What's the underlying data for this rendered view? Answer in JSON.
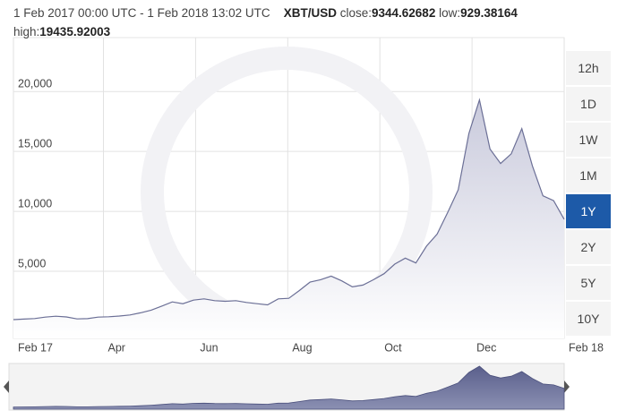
{
  "header": {
    "range": "1 Feb 2017 00:00 UTC - 1 Feb 2018 13:02 UTC",
    "pair": "XBT/USD",
    "close_label": "close:",
    "close": "9344.62682",
    "low_label": "low:",
    "low": "929.38164",
    "high_label": "high:",
    "high": "19435.92003"
  },
  "range_buttons": [
    "12h",
    "1D",
    "1W",
    "1M",
    "1Y",
    "2Y",
    "5Y",
    "10Y"
  ],
  "active_button": 4,
  "chart_data": {
    "type": "area",
    "color": "#6b6f96",
    "values": [
      970,
      1010,
      1060,
      1180,
      1250,
      1190,
      1030,
      1050,
      1180,
      1210,
      1270,
      1360,
      1540,
      1760,
      2100,
      2450,
      2300,
      2600,
      2700,
      2550,
      2500,
      2550,
      2400,
      2300,
      2200,
      2700,
      2750,
      3400,
      4100,
      4300,
      4600,
      4200,
      3700,
      3850,
      4300,
      4800,
      5600,
      6100,
      5700,
      7100,
      8100,
      9900,
      11800,
      16500,
      19300,
      15200,
      14000,
      14800,
      16900,
      13800,
      11300,
      10900,
      9344.62682
    ],
    "xlim": [
      0,
      52
    ],
    "xticks": [
      {
        "value": 0,
        "label": "Feb 17"
      },
      {
        "value": 8.5,
        "label": "Apr"
      },
      {
        "value": 17.2,
        "label": "Jun"
      },
      {
        "value": 25.9,
        "label": "Aug"
      },
      {
        "value": 34.6,
        "label": "Oct"
      },
      {
        "value": 43.3,
        "label": "Dec"
      },
      {
        "value": 52,
        "label": "Feb 18"
      }
    ],
    "ylim": [
      -600,
      24500
    ],
    "yticks": [
      0,
      {
        "value": 5000,
        "label": "5,000"
      },
      {
        "value": 10000,
        "label": "10,000"
      },
      {
        "value": 15000,
        "label": "15,000"
      },
      {
        "value": 20000,
        "label": "20,000"
      }
    ],
    "grid": true
  }
}
